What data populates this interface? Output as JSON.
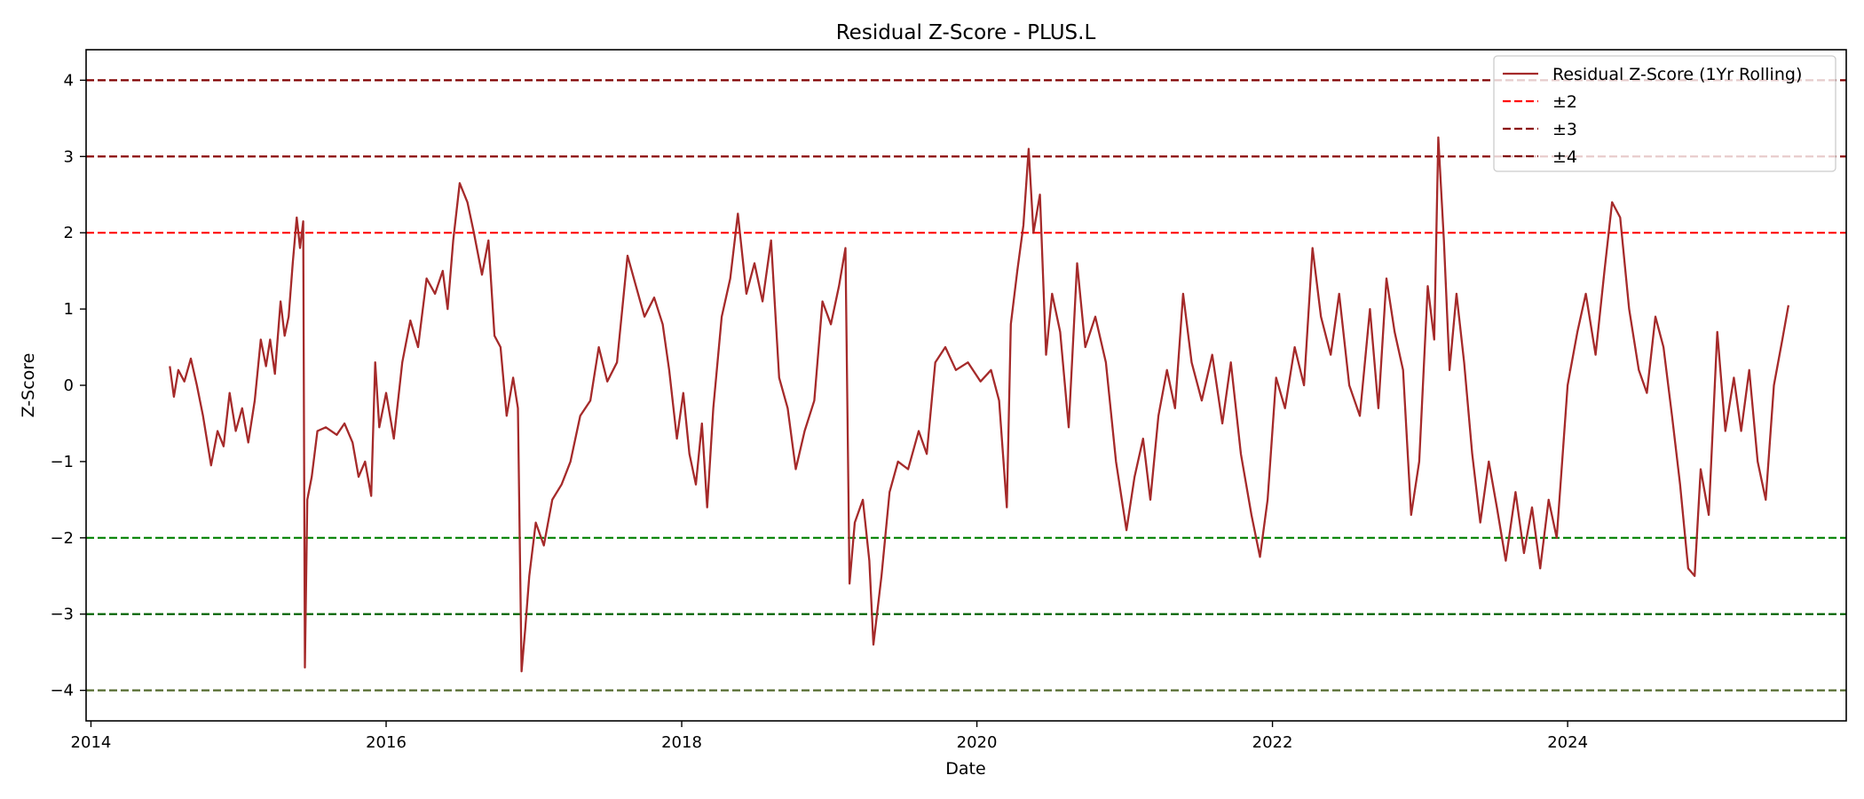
{
  "chart_data": {
    "type": "line",
    "title": "Residual Z-Score - PLUS.L",
    "xlabel": "Date",
    "ylabel": "Z-Score",
    "xlim": [
      "2013-12-20",
      "2025-11-20"
    ],
    "ylim": [
      -4.4,
      4.4
    ],
    "x_ticks": [
      "2014",
      "2016",
      "2018",
      "2020",
      "2022",
      "2024"
    ],
    "y_ticks": [
      4,
      3,
      2,
      1,
      0,
      -1,
      -2,
      -3,
      -4
    ],
    "y_tick_labels": [
      "4",
      "3",
      "2",
      "1",
      "0",
      "−1",
      "−2",
      "−3",
      "−4"
    ],
    "grid": false,
    "legend_position": "top-right",
    "series": [
      {
        "name": "Residual Z-Score (1Yr Rolling)",
        "color": "#a52a2a",
        "points": [
          [
            "2014-07-15",
            0.25
          ],
          [
            "2014-07-25",
            -0.15
          ],
          [
            "2014-08-05",
            0.2
          ],
          [
            "2014-08-20",
            0.05
          ],
          [
            "2014-09-05",
            0.35
          ],
          [
            "2014-09-20",
            0.0
          ],
          [
            "2014-10-05",
            -0.4
          ],
          [
            "2014-10-25",
            -1.05
          ],
          [
            "2014-11-10",
            -0.6
          ],
          [
            "2014-11-25",
            -0.8
          ],
          [
            "2014-12-10",
            -0.1
          ],
          [
            "2014-12-25",
            -0.6
          ],
          [
            "2015-01-10",
            -0.3
          ],
          [
            "2015-01-25",
            -0.75
          ],
          [
            "2015-02-10",
            -0.2
          ],
          [
            "2015-02-25",
            0.6
          ],
          [
            "2015-03-10",
            0.25
          ],
          [
            "2015-03-20",
            0.6
          ],
          [
            "2015-04-01",
            0.15
          ],
          [
            "2015-04-15",
            1.1
          ],
          [
            "2015-04-25",
            0.65
          ],
          [
            "2015-05-05",
            0.9
          ],
          [
            "2015-05-15",
            1.6
          ],
          [
            "2015-05-25",
            2.2
          ],
          [
            "2015-06-02",
            1.8
          ],
          [
            "2015-06-10",
            2.15
          ],
          [
            "2015-06-14",
            -3.7
          ],
          [
            "2015-06-20",
            -1.5
          ],
          [
            "2015-07-01",
            -1.2
          ],
          [
            "2015-07-15",
            -0.6
          ],
          [
            "2015-08-05",
            -0.55
          ],
          [
            "2015-09-01",
            -0.65
          ],
          [
            "2015-09-20",
            -0.5
          ],
          [
            "2015-10-10",
            -0.75
          ],
          [
            "2015-10-25",
            -1.2
          ],
          [
            "2015-11-10",
            -1.0
          ],
          [
            "2015-11-25",
            -1.45
          ],
          [
            "2015-12-05",
            0.3
          ],
          [
            "2015-12-15",
            -0.55
          ],
          [
            "2016-01-01",
            -0.1
          ],
          [
            "2016-01-20",
            -0.7
          ],
          [
            "2016-02-10",
            0.3
          ],
          [
            "2016-03-01",
            0.85
          ],
          [
            "2016-03-20",
            0.5
          ],
          [
            "2016-04-10",
            1.4
          ],
          [
            "2016-05-01",
            1.2
          ],
          [
            "2016-05-20",
            1.5
          ],
          [
            "2016-06-01",
            1.0
          ],
          [
            "2016-06-15",
            1.9
          ],
          [
            "2016-07-01",
            2.65
          ],
          [
            "2016-07-20",
            2.4
          ],
          [
            "2016-08-05",
            2.0
          ],
          [
            "2016-08-25",
            1.45
          ],
          [
            "2016-09-10",
            1.9
          ],
          [
            "2016-09-25",
            0.65
          ],
          [
            "2016-10-10",
            0.5
          ],
          [
            "2016-10-25",
            -0.4
          ],
          [
            "2016-11-10",
            0.1
          ],
          [
            "2016-11-22",
            -0.3
          ],
          [
            "2016-12-01",
            -3.75
          ],
          [
            "2016-12-10",
            -3.2
          ],
          [
            "2016-12-20",
            -2.5
          ],
          [
            "2017-01-05",
            -1.8
          ],
          [
            "2017-01-25",
            -2.1
          ],
          [
            "2017-02-15",
            -1.5
          ],
          [
            "2017-03-10",
            -1.3
          ],
          [
            "2017-04-01",
            -1.0
          ],
          [
            "2017-04-25",
            -0.4
          ],
          [
            "2017-05-20",
            -0.2
          ],
          [
            "2017-06-10",
            0.5
          ],
          [
            "2017-07-01",
            0.05
          ],
          [
            "2017-07-25",
            0.3
          ],
          [
            "2017-08-20",
            1.7
          ],
          [
            "2017-09-10",
            1.3
          ],
          [
            "2017-10-01",
            0.9
          ],
          [
            "2017-10-25",
            1.15
          ],
          [
            "2017-11-15",
            0.8
          ],
          [
            "2017-12-01",
            0.2
          ],
          [
            "2017-12-20",
            -0.7
          ],
          [
            "2018-01-05",
            -0.1
          ],
          [
            "2018-01-20",
            -0.9
          ],
          [
            "2018-02-05",
            -1.3
          ],
          [
            "2018-02-20",
            -0.5
          ],
          [
            "2018-03-05",
            -1.6
          ],
          [
            "2018-03-20",
            -0.3
          ],
          [
            "2018-04-10",
            0.9
          ],
          [
            "2018-05-01",
            1.4
          ],
          [
            "2018-05-20",
            2.25
          ],
          [
            "2018-06-10",
            1.2
          ],
          [
            "2018-06-30",
            1.6
          ],
          [
            "2018-07-20",
            1.1
          ],
          [
            "2018-08-10",
            1.9
          ],
          [
            "2018-08-30",
            0.1
          ],
          [
            "2018-09-20",
            -0.3
          ],
          [
            "2018-10-10",
            -1.1
          ],
          [
            "2018-11-01",
            -0.6
          ],
          [
            "2018-11-25",
            -0.2
          ],
          [
            "2018-12-15",
            1.1
          ],
          [
            "2019-01-05",
            0.8
          ],
          [
            "2019-01-25",
            1.3
          ],
          [
            "2019-02-10",
            1.8
          ],
          [
            "2019-02-20",
            -2.6
          ],
          [
            "2019-03-05",
            -1.8
          ],
          [
            "2019-03-25",
            -1.5
          ],
          [
            "2019-04-10",
            -2.3
          ],
          [
            "2019-04-20",
            -3.4
          ],
          [
            "2019-05-10",
            -2.5
          ],
          [
            "2019-05-30",
            -1.4
          ],
          [
            "2019-06-20",
            -1.0
          ],
          [
            "2019-07-15",
            -1.1
          ],
          [
            "2019-08-10",
            -0.6
          ],
          [
            "2019-08-30",
            -0.9
          ],
          [
            "2019-09-20",
            0.3
          ],
          [
            "2019-10-15",
            0.5
          ],
          [
            "2019-11-10",
            0.2
          ],
          [
            "2019-12-10",
            0.3
          ],
          [
            "2020-01-10",
            0.05
          ],
          [
            "2020-02-05",
            0.2
          ],
          [
            "2020-02-25",
            -0.2
          ],
          [
            "2020-03-15",
            -1.6
          ],
          [
            "2020-03-25",
            0.8
          ],
          [
            "2020-04-10",
            1.5
          ],
          [
            "2020-04-25",
            2.1
          ],
          [
            "2020-05-08",
            3.1
          ],
          [
            "2020-05-20",
            2.0
          ],
          [
            "2020-06-05",
            2.5
          ],
          [
            "2020-06-20",
            0.4
          ],
          [
            "2020-07-05",
            1.2
          ],
          [
            "2020-07-25",
            0.7
          ],
          [
            "2020-08-15",
            -0.55
          ],
          [
            "2020-09-05",
            1.6
          ],
          [
            "2020-09-25",
            0.5
          ],
          [
            "2020-10-20",
            0.9
          ],
          [
            "2020-11-15",
            0.3
          ],
          [
            "2020-12-10",
            -1.0
          ],
          [
            "2021-01-05",
            -1.9
          ],
          [
            "2021-01-25",
            -1.2
          ],
          [
            "2021-02-15",
            -0.7
          ],
          [
            "2021-03-05",
            -1.5
          ],
          [
            "2021-03-25",
            -0.4
          ],
          [
            "2021-04-15",
            0.2
          ],
          [
            "2021-05-05",
            -0.3
          ],
          [
            "2021-05-25",
            1.2
          ],
          [
            "2021-06-15",
            0.3
          ],
          [
            "2021-07-10",
            -0.2
          ],
          [
            "2021-08-05",
            0.4
          ],
          [
            "2021-08-30",
            -0.5
          ],
          [
            "2021-09-20",
            0.3
          ],
          [
            "2021-10-15",
            -0.9
          ],
          [
            "2021-11-10",
            -1.7
          ],
          [
            "2021-12-01",
            -2.25
          ],
          [
            "2021-12-20",
            -1.5
          ],
          [
            "2022-01-10",
            0.1
          ],
          [
            "2022-02-01",
            -0.3
          ],
          [
            "2022-02-25",
            0.5
          ],
          [
            "2022-03-20",
            0.0
          ],
          [
            "2022-04-10",
            1.8
          ],
          [
            "2022-05-01",
            0.9
          ],
          [
            "2022-05-25",
            0.4
          ],
          [
            "2022-06-15",
            1.2
          ],
          [
            "2022-07-10",
            0.0
          ],
          [
            "2022-08-05",
            -0.4
          ],
          [
            "2022-08-30",
            1.0
          ],
          [
            "2022-09-20",
            -0.3
          ],
          [
            "2022-10-10",
            1.4
          ],
          [
            "2022-10-30",
            0.7
          ],
          [
            "2022-11-20",
            0.2
          ],
          [
            "2022-12-10",
            -1.7
          ],
          [
            "2022-12-30",
            -1.0
          ],
          [
            "2023-01-20",
            1.3
          ],
          [
            "2023-02-05",
            0.6
          ],
          [
            "2023-02-15",
            3.25
          ],
          [
            "2023-03-01",
            1.9
          ],
          [
            "2023-03-15",
            0.2
          ],
          [
            "2023-04-01",
            1.2
          ],
          [
            "2023-04-20",
            0.3
          ],
          [
            "2023-05-10",
            -0.9
          ],
          [
            "2023-05-30",
            -1.8
          ],
          [
            "2023-06-20",
            -1.0
          ],
          [
            "2023-07-10",
            -1.6
          ],
          [
            "2023-08-01",
            -2.3
          ],
          [
            "2023-08-25",
            -1.4
          ],
          [
            "2023-09-15",
            -2.2
          ],
          [
            "2023-10-05",
            -1.6
          ],
          [
            "2023-10-25",
            -2.4
          ],
          [
            "2023-11-15",
            -1.5
          ],
          [
            "2023-12-05",
            -2.0
          ],
          [
            "2024-01-01",
            0.0
          ],
          [
            "2024-01-25",
            0.7
          ],
          [
            "2024-02-15",
            1.2
          ],
          [
            "2024-03-10",
            0.4
          ],
          [
            "2024-04-01",
            1.5
          ],
          [
            "2024-04-20",
            2.4
          ],
          [
            "2024-05-10",
            2.2
          ],
          [
            "2024-06-01",
            1.0
          ],
          [
            "2024-06-25",
            0.2
          ],
          [
            "2024-07-15",
            -0.1
          ],
          [
            "2024-08-05",
            0.9
          ],
          [
            "2024-08-25",
            0.5
          ],
          [
            "2024-09-15",
            -0.4
          ],
          [
            "2024-10-05",
            -1.3
          ],
          [
            "2024-10-25",
            -2.4
          ],
          [
            "2024-11-10",
            -2.5
          ],
          [
            "2024-11-25",
            -1.1
          ],
          [
            "2024-12-15",
            -1.7
          ],
          [
            "2025-01-05",
            0.7
          ],
          [
            "2025-01-25",
            -0.6
          ],
          [
            "2025-02-15",
            0.1
          ],
          [
            "2025-03-05",
            -0.6
          ],
          [
            "2025-03-25",
            0.2
          ],
          [
            "2025-04-15",
            -1.0
          ],
          [
            "2025-05-05",
            -1.5
          ],
          [
            "2025-05-25",
            0.0
          ],
          [
            "2025-06-15",
            0.6
          ],
          [
            "2025-06-30",
            1.05
          ]
        ]
      }
    ],
    "reference_lines": [
      {
        "y": 2,
        "color": "#ff0000",
        "style": "dashed",
        "name": "±2"
      },
      {
        "y": -2,
        "color": "#008000",
        "style": "dashed"
      },
      {
        "y": 3,
        "color": "#8b0000",
        "style": "dashed",
        "name": "±3"
      },
      {
        "y": -3,
        "color": "#006400",
        "style": "dashed"
      },
      {
        "y": 4,
        "color": "#800000",
        "style": "dashed",
        "name": "±4"
      },
      {
        "y": -4,
        "color": "#556b2f",
        "style": "dashed"
      }
    ],
    "legend": [
      {
        "label": "Residual Z-Score (1Yr Rolling)",
        "color": "#a52a2a",
        "style": "solid"
      },
      {
        "label": "±2",
        "color": "#ff0000",
        "style": "dashed"
      },
      {
        "label": "±3",
        "color": "#8b0000",
        "style": "dashed"
      },
      {
        "label": "±4",
        "color": "#800000",
        "style": "dashed"
      }
    ]
  }
}
